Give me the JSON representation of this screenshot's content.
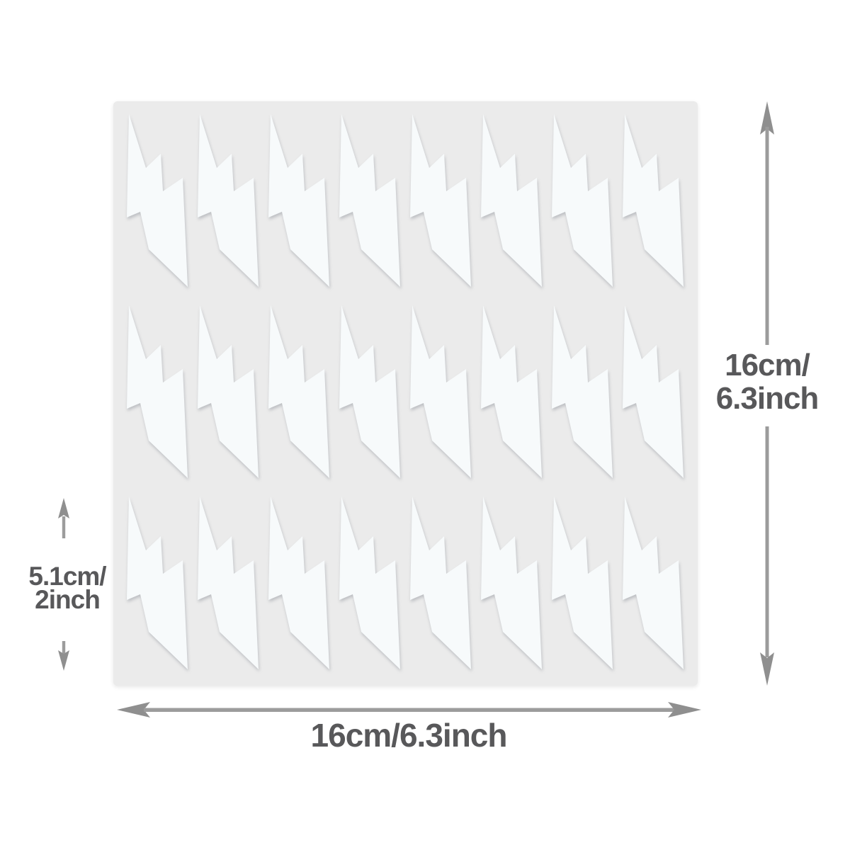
{
  "page": {
    "background_color": "#ffffff"
  },
  "sticker_sheet": {
    "shape": "lightning-bolt",
    "rows": 3,
    "cols": 8,
    "sticker_count": 24,
    "sheet_color": "#ebebeb",
    "sticker_color": "#f7fafb"
  },
  "dimensions": {
    "text_color": "#58585a",
    "arrow_color": "#9c9c9c",
    "arrowhead_color": "#8f8f8f",
    "sheet_height": {
      "lines": [
        "16cm/",
        "6.3inch"
      ]
    },
    "sheet_width": {
      "text": "16cm/6.3inch"
    },
    "sticker_height": {
      "lines": [
        "5.1cm/",
        "2inch"
      ]
    }
  }
}
